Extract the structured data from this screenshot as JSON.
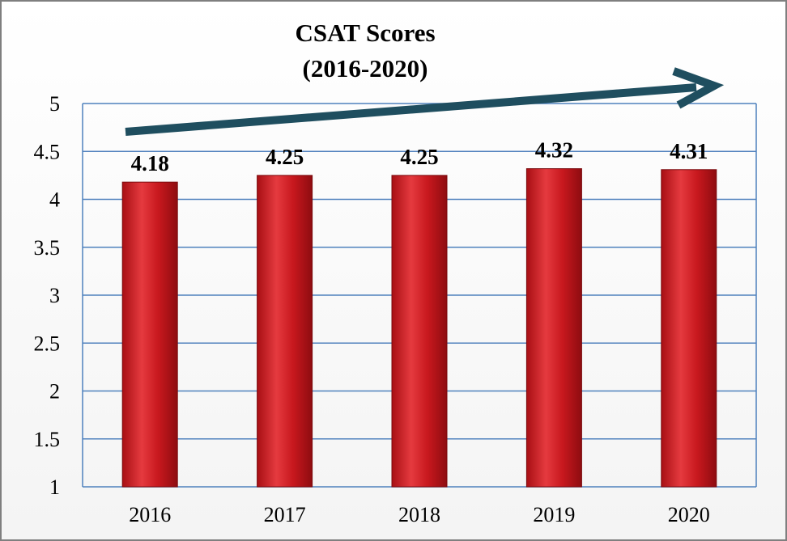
{
  "chart_data": {
    "type": "bar",
    "title": "CSAT Scores",
    "subtitle": "(2016-2020)",
    "xlabel": "",
    "ylabel": "",
    "categories": [
      "2016",
      "2017",
      "2018",
      "2019",
      "2020"
    ],
    "values": [
      4.18,
      4.25,
      4.25,
      4.32,
      4.31
    ],
    "data_labels": [
      "4.18",
      "4.25",
      "4.25",
      "4.32",
      "4.31"
    ],
    "ylim": [
      1,
      5
    ],
    "y_ticks": [
      "1",
      "1.5",
      "2",
      "2.5",
      "3",
      "3.5",
      "4",
      "4.5",
      "5"
    ],
    "grid": true,
    "legend": "none",
    "annotation": "upward trend arrow",
    "colors": {
      "bar": "#c0161c",
      "bar_highlight": "#e53a3f",
      "gridline": "#4f81bd",
      "arrow": "#1f4e5f",
      "frame": "#7f7f7f"
    }
  }
}
